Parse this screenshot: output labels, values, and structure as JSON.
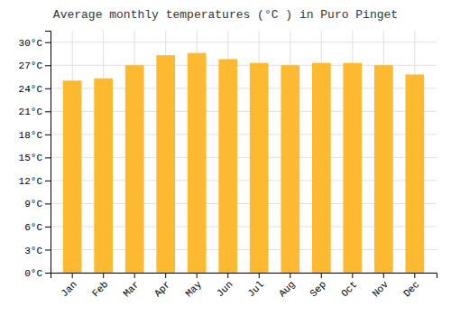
{
  "chart_data": {
    "type": "bar",
    "title": "Average monthly temperatures (°C ) in Puro Pinget",
    "categories": [
      "Jan",
      "Feb",
      "Mar",
      "Apr",
      "May",
      "Jun",
      "Jul",
      "Aug",
      "Sep",
      "Oct",
      "Nov",
      "Dec"
    ],
    "values": [
      25.0,
      25.3,
      27.0,
      28.3,
      28.6,
      27.8,
      27.3,
      27.0,
      27.3,
      27.3,
      27.0,
      25.8
    ],
    "color": "#FDB930",
    "ylim": [
      0,
      31.5
    ],
    "yticks": [
      {
        "value": 0,
        "label": "0°C"
      },
      {
        "value": 3,
        "label": "3°C"
      },
      {
        "value": 6,
        "label": "6°C"
      },
      {
        "value": 9,
        "label": "9°C"
      },
      {
        "value": 12,
        "label": "12°C"
      },
      {
        "value": 15,
        "label": "15°C"
      },
      {
        "value": 18,
        "label": "18°C"
      },
      {
        "value": 21,
        "label": "21°C"
      },
      {
        "value": 24,
        "label": "24°C"
      },
      {
        "value": 27,
        "label": "27°C"
      },
      {
        "value": 30,
        "label": "30°C"
      }
    ],
    "grid": true
  }
}
